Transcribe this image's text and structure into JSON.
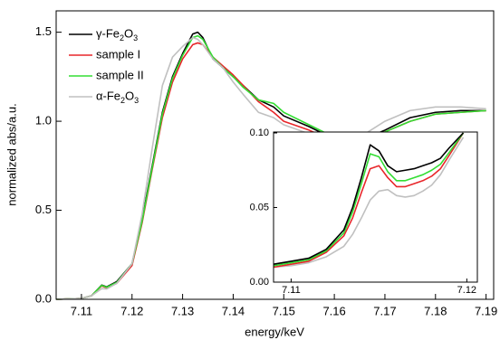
{
  "chart_data": [
    {
      "type": "line",
      "xlabel": "energy/keV",
      "ylabel": "normalized abs/a.u.",
      "legend": "upper left",
      "x": [
        7.105,
        7.11,
        7.112,
        7.114,
        7.115,
        7.117,
        7.12,
        7.122,
        7.124,
        7.126,
        7.128,
        7.13,
        7.132,
        7.133,
        7.134,
        7.136,
        7.138,
        7.14,
        7.142,
        7.145,
        7.148,
        7.15,
        7.155,
        7.16,
        7.165,
        7.17,
        7.175,
        7.18,
        7.185,
        7.19
      ],
      "series": [
        {
          "name": "γ-Fe2O3",
          "color": "#000000",
          "values": [
            0,
            0.005,
            0.02,
            0.08,
            0.07,
            0.1,
            0.2,
            0.45,
            0.75,
            1.05,
            1.25,
            1.38,
            1.49,
            1.5,
            1.47,
            1.35,
            1.3,
            1.25,
            1.2,
            1.12,
            1.08,
            1.03,
            0.97,
            0.9,
            0.89,
            0.95,
            1.02,
            1.05,
            1.06,
            1.06
          ]
        },
        {
          "name": "sample I",
          "color": "#e8262a",
          "values": [
            0,
            0.005,
            0.02,
            0.075,
            0.065,
            0.09,
            0.19,
            0.43,
            0.73,
            1.02,
            1.22,
            1.35,
            1.43,
            1.44,
            1.43,
            1.36,
            1.31,
            1.26,
            1.2,
            1.11,
            1.05,
            1.0,
            0.95,
            0.89,
            0.89,
            0.94,
            1.0,
            1.04,
            1.05,
            1.06
          ]
        },
        {
          "name": "sample II",
          "color": "#33dd33",
          "values": [
            0,
            0.005,
            0.02,
            0.078,
            0.068,
            0.095,
            0.2,
            0.44,
            0.74,
            1.04,
            1.24,
            1.37,
            1.47,
            1.48,
            1.46,
            1.36,
            1.3,
            1.25,
            1.19,
            1.12,
            1.1,
            1.05,
            0.98,
            0.91,
            0.89,
            0.94,
            1.0,
            1.04,
            1.05,
            1.06
          ]
        },
        {
          "name": "α-Fe2O3",
          "color": "#c0c0c0",
          "values": [
            0,
            0.005,
            0.02,
            0.06,
            0.058,
            0.09,
            0.2,
            0.48,
            0.85,
            1.2,
            1.36,
            1.42,
            1.47,
            1.46,
            1.43,
            1.35,
            1.3,
            1.22,
            1.15,
            1.05,
            1.02,
            0.98,
            0.93,
            0.88,
            0.91,
            1.0,
            1.06,
            1.08,
            1.08,
            1.07
          ]
        }
      ],
      "xlim": [
        7.105,
        7.1915
      ],
      "ylim": [
        0,
        1.62
      ],
      "xticks": [
        7.11,
        7.12,
        7.13,
        7.14,
        7.15,
        7.16,
        7.17,
        7.18,
        7.19
      ],
      "yticks": [
        {
          "value": 0,
          "label": "0.0"
        },
        {
          "value": 0.5,
          "label": "0.5"
        },
        {
          "value": 1,
          "label": "1.0"
        },
        {
          "value": 1.5,
          "label": "1.5"
        }
      ]
    },
    {
      "type": "line",
      "x": [
        7.109,
        7.11,
        7.111,
        7.112,
        7.113,
        7.1135,
        7.114,
        7.1145,
        7.115,
        7.1155,
        7.116,
        7.1165,
        7.117,
        7.1175,
        7.118,
        7.1185,
        7.119,
        7.1198
      ],
      "series": [
        {
          "color": "#c0c0c0",
          "values": [
            0.01,
            0.011,
            0.013,
            0.017,
            0.024,
            0.032,
            0.043,
            0.055,
            0.061,
            0.062,
            0.058,
            0.057,
            0.058,
            0.061,
            0.065,
            0.072,
            0.082,
            0.097
          ]
        },
        {
          "color": "#e8262a",
          "values": [
            0.01,
            0.012,
            0.014,
            0.02,
            0.031,
            0.043,
            0.06,
            0.076,
            0.078,
            0.07,
            0.064,
            0.064,
            0.066,
            0.068,
            0.071,
            0.076,
            0.085,
            0.1
          ]
        },
        {
          "color": "#33dd33",
          "values": [
            0.011,
            0.013,
            0.015,
            0.021,
            0.033,
            0.047,
            0.066,
            0.086,
            0.084,
            0.074,
            0.068,
            0.068,
            0.07,
            0.072,
            0.075,
            0.079,
            0.087,
            0.1
          ]
        },
        {
          "color": "#000000",
          "values": [
            0.012,
            0.014,
            0.016,
            0.022,
            0.035,
            0.05,
            0.07,
            0.092,
            0.088,
            0.078,
            0.074,
            0.075,
            0.076,
            0.078,
            0.08,
            0.083,
            0.09,
            0.1
          ]
        }
      ],
      "xlim": [
        7.109,
        7.1206
      ],
      "ylim": [
        0,
        0.1006
      ],
      "xticks": [
        7.11,
        7.12
      ],
      "yticks": [
        {
          "value": 0,
          "label": "0.00"
        },
        {
          "value": 0.05,
          "label": "0.05"
        },
        {
          "value": 0.1,
          "label": "0.10"
        }
      ]
    }
  ]
}
